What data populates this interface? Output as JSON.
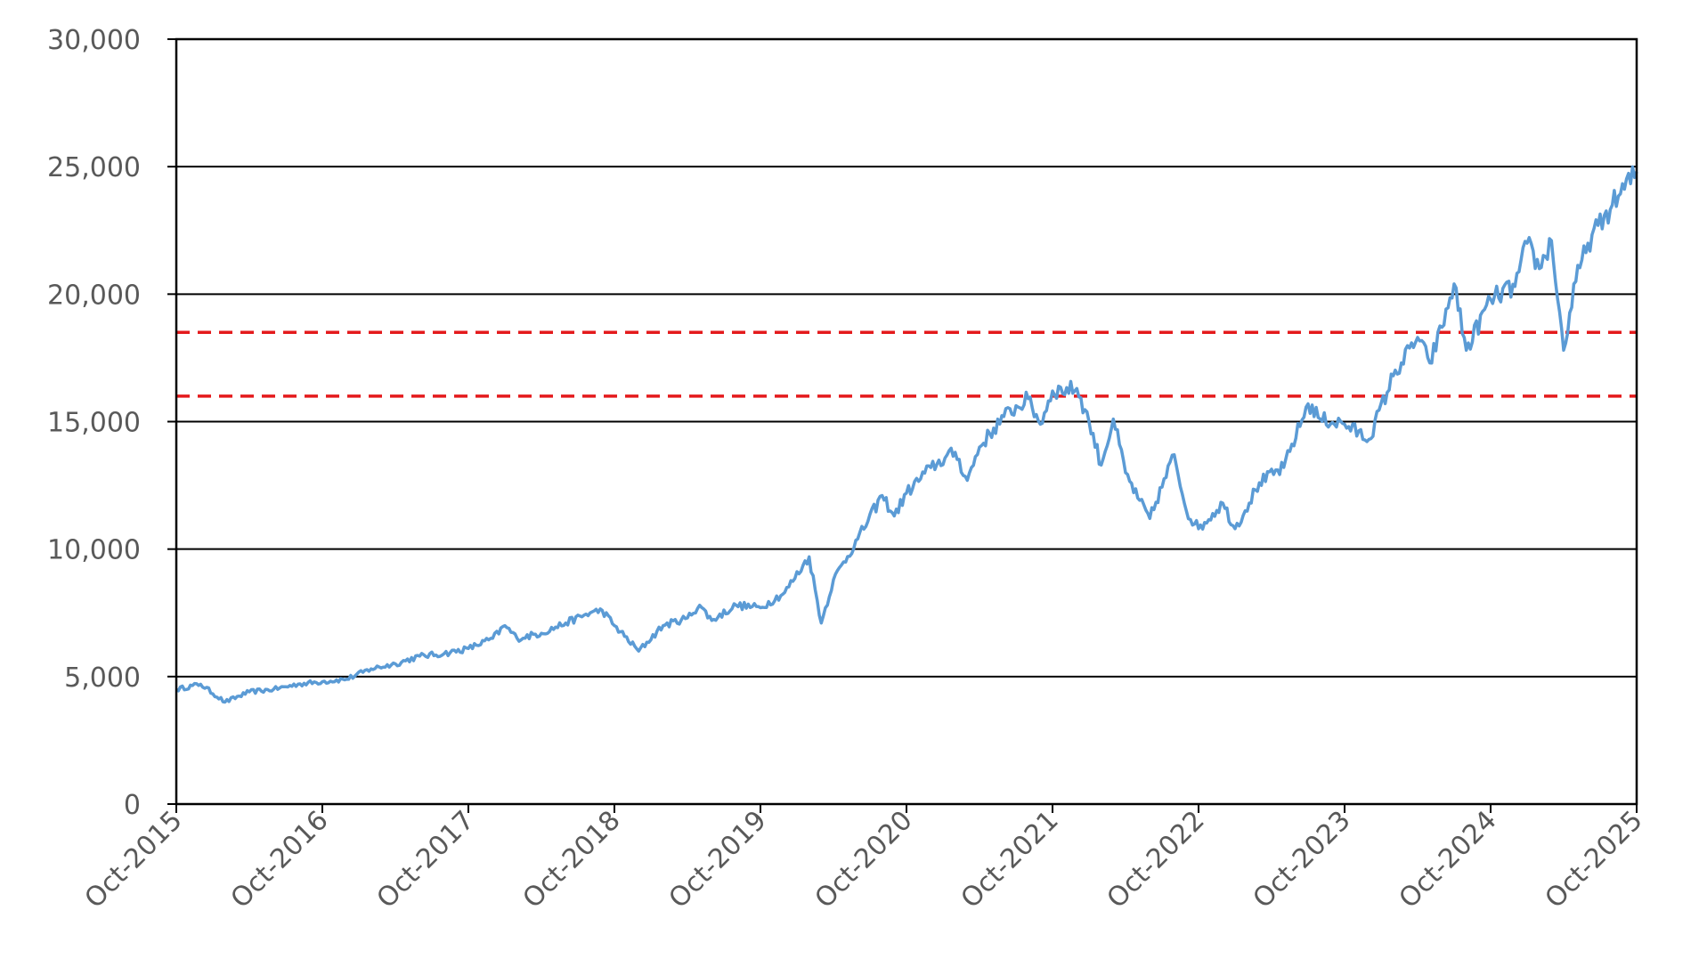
{
  "chart_data": {
    "type": "line",
    "title": "",
    "xlabel": "",
    "ylabel": "",
    "x_ticks": [
      "Oct-2015",
      "Oct-2016",
      "Oct-2017",
      "Oct-2018",
      "Oct-2019",
      "Oct-2020",
      "Oct-2021",
      "Oct-2022",
      "Oct-2023",
      "Oct-2024",
      "Oct-2025"
    ],
    "y_ticks": [
      "0",
      "5,000",
      "10,000",
      "15,000",
      "20,000",
      "25,000",
      "30,000"
    ],
    "ylim": [
      0,
      30000
    ],
    "xlim": [
      "2015-10",
      "2025-10"
    ],
    "grid": "horizontal",
    "colors": {
      "series": "#5b9bd5",
      "reference": "#e41a1c",
      "grid": "#000000",
      "ticks": "#595959"
    },
    "reference_lines": [
      {
        "y": 18500,
        "style": "dashed"
      },
      {
        "y": 16000,
        "style": "dashed"
      }
    ],
    "series": [
      {
        "x": [
          "2015-10",
          "2015-12",
          "2016-02",
          "2016-04",
          "2016-06",
          "2016-08",
          "2016-10",
          "2016-12",
          "2017-02",
          "2017-04",
          "2017-06",
          "2017-08",
          "2017-10",
          "2017-12",
          "2018-01",
          "2018-02",
          "2018-04",
          "2018-06",
          "2018-08",
          "2018-09",
          "2018-10",
          "2018-12",
          "2019-02",
          "2019-04",
          "2019-05",
          "2019-06",
          "2019-08",
          "2019-10",
          "2019-12",
          "2020-02",
          "2020-03",
          "2020-04",
          "2020-06",
          "2020-08",
          "2020-09",
          "2020-10",
          "2020-12",
          "2021-02",
          "2021-03",
          "2021-04",
          "2021-06",
          "2021-08",
          "2021-09",
          "2021-10",
          "2021-12",
          "2022-01",
          "2022-02",
          "2022-03",
          "2022-04",
          "2022-05",
          "2022-06",
          "2022-08",
          "2022-09",
          "2022-10",
          "2022-12",
          "2023-01",
          "2023-03",
          "2023-05",
          "2023-07",
          "2023-08",
          "2023-10",
          "2023-12",
          "2024-02",
          "2024-04",
          "2024-05",
          "2024-06",
          "2024-07",
          "2024-08",
          "2024-10",
          "2024-12",
          "2025-01",
          "2025-02",
          "2025-03",
          "2025-04",
          "2025-05",
          "2025-06",
          "2025-08",
          "2025-10"
        ],
        "values": [
          4500,
          4700,
          4000,
          4400,
          4500,
          4700,
          4800,
          4900,
          5300,
          5500,
          5800,
          5900,
          6100,
          6500,
          7000,
          6500,
          6700,
          7100,
          7500,
          7600,
          7000,
          6000,
          7000,
          7300,
          7800,
          7200,
          7800,
          7700,
          8300,
          9700,
          7100,
          8800,
          10400,
          12100,
          11300,
          12200,
          13200,
          13800,
          12700,
          14000,
          15200,
          15900,
          14900,
          16200,
          16300,
          15000,
          13300,
          15100,
          13000,
          12000,
          11200,
          13700,
          11500,
          10800,
          11800,
          10800,
          12600,
          13200,
          15700,
          15100,
          14900,
          14300,
          16800,
          18300,
          17300,
          18700,
          20400,
          17800,
          19800,
          20300,
          22000,
          21000,
          22100,
          17800,
          20500,
          22000,
          23500,
          24800
        ]
      }
    ]
  }
}
